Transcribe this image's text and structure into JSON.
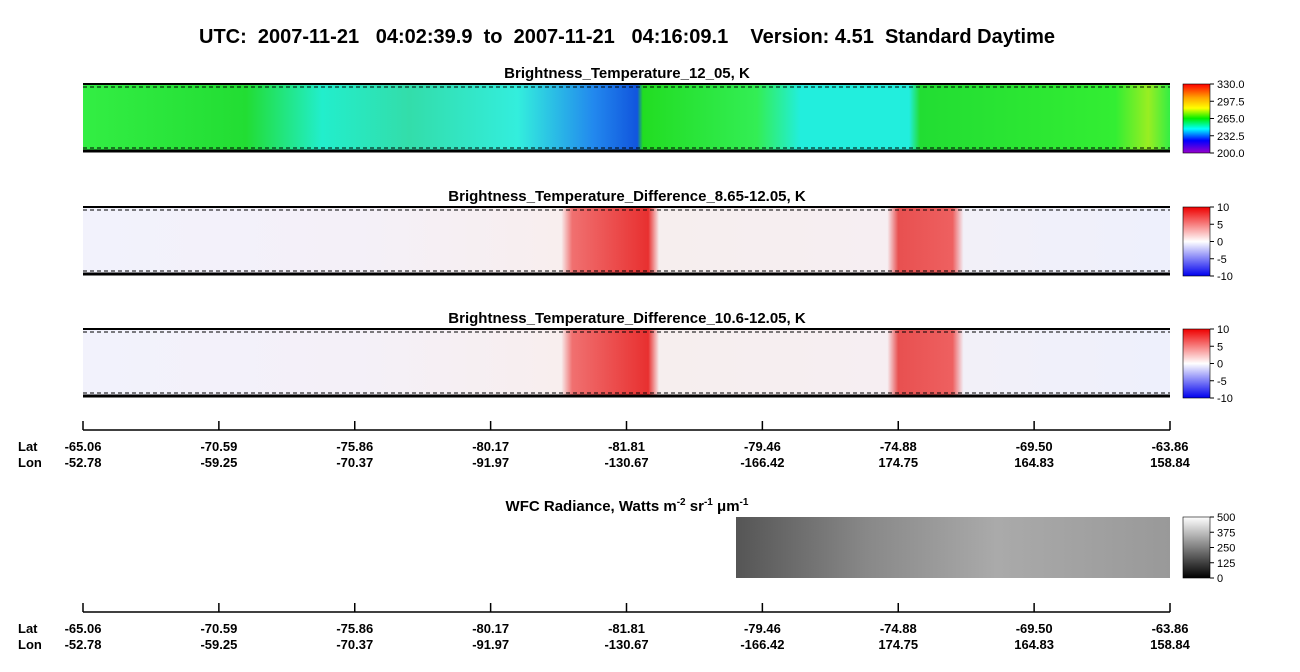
{
  "figure": {
    "title": "UTC:  2007-11-21   04:02:39.9  to  2007-11-21   04:16:09.1    Version: 4.51  Standard Daytime",
    "panels": [
      {
        "title": "Brightness_Temperature_12_05, K",
        "colormap": "rainbow",
        "clim": [
          200,
          330
        ],
        "ticks": [
          {
            "value": 330,
            "label": "330.0"
          },
          297.5,
          {
            "value": 265,
            "label": "265.0"
          },
          232.5,
          {
            "value": 200,
            "label": "200.0"
          }
        ]
      },
      {
        "title": "Brightness_Temperature_Difference_8.65-12.05, K",
        "colormap": "diverging",
        "clim": [
          -10,
          10
        ],
        "ticks": [
          10,
          5,
          0,
          -5,
          -10
        ]
      },
      {
        "title": "Brightness_Temperature_Difference_10.6-12.05, K",
        "colormap": "diverging",
        "clim": [
          -10,
          10
        ],
        "ticks": [
          10,
          5,
          0,
          -5,
          -10
        ]
      }
    ],
    "wfc": {
      "title_parts": [
        "WFC Radiance, Watts m",
        "-2",
        " sr",
        "-1",
        " μm",
        "-1"
      ],
      "colormap": "gray",
      "clim": [
        0,
        500
      ],
      "ticks": [
        500,
        375,
        250,
        125,
        0
      ]
    },
    "axis": {
      "lat_label": "Lat",
      "lon_label": "Lon",
      "lat": [
        -65.06,
        -70.59,
        -75.86,
        -80.17,
        -81.81,
        -79.46,
        -74.88,
        {
          "value": -69.5,
          "label": "-69.50"
        },
        -63.86
      ],
      "lon": [
        -52.78,
        -59.25,
        -70.37,
        -91.97,
        -130.67,
        -166.42,
        174.75,
        164.83,
        158.84
      ]
    }
  }
}
